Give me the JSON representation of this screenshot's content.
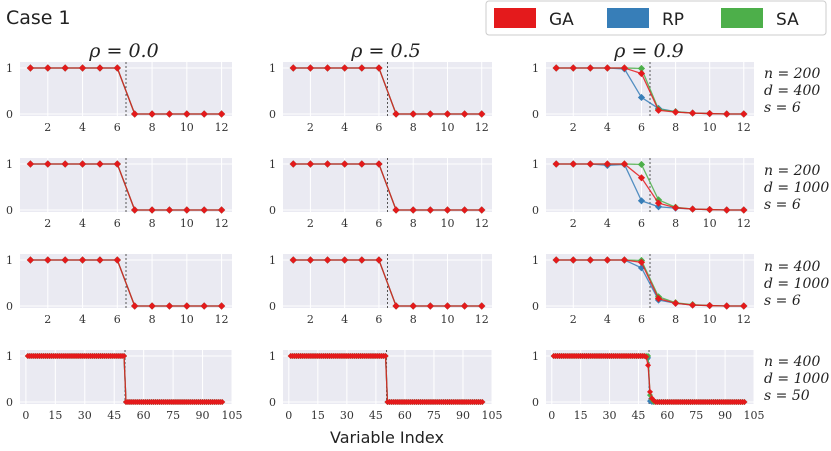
{
  "case_title": "Case 1",
  "legend": [
    {
      "label": "GA",
      "color": "#e41a1c"
    },
    {
      "label": "RP",
      "color": "#377eb8"
    },
    {
      "label": "SA",
      "color": "#4daf4a"
    }
  ],
  "column_titles": [
    "ρ = 0.0",
    "ρ = 0.5",
    "ρ = 0.9"
  ],
  "row_labels": [
    [
      "n = 200",
      "d = 400",
      "s = 6"
    ],
    [
      "n = 200",
      "d = 1000",
      "s = 6"
    ],
    [
      "n = 400",
      "d = 1000",
      "s = 6"
    ],
    [
      "n = 400",
      "d = 1000",
      "s = 50"
    ]
  ],
  "xlabel": "Variable Index",
  "chart_data": {
    "type": "line",
    "grid": true,
    "ylim": [
      0,
      1
    ],
    "yticks": [
      0,
      1
    ],
    "series_names": [
      "GA",
      "RP",
      "SA"
    ],
    "rows": [
      {
        "x": [
          1,
          2,
          3,
          4,
          5,
          6,
          7,
          8,
          9,
          10,
          11,
          12
        ],
        "xticks": [
          2,
          4,
          6,
          8,
          10,
          12
        ],
        "xlim": [
          0.4,
          12.6
        ],
        "threshold": 6.5,
        "panels": [
          {
            "GA": [
              1,
              1,
              1,
              1,
              1,
              1,
              0,
              0,
              0,
              0,
              0,
              0
            ],
            "RP": [
              1,
              1,
              1,
              1,
              1,
              1,
              0,
              0,
              0,
              0,
              0,
              0
            ],
            "SA": [
              1,
              1,
              1,
              1,
              1,
              1,
              0,
              0,
              0,
              0,
              0,
              0
            ]
          },
          {
            "GA": [
              1,
              1,
              1,
              1,
              1,
              1,
              0,
              0,
              0,
              0,
              0,
              0
            ],
            "RP": [
              1,
              1,
              1,
              1,
              1,
              1,
              0,
              0,
              0,
              0,
              0,
              0
            ],
            "SA": [
              1,
              1,
              1,
              1,
              1,
              1,
              0,
              0,
              0,
              0,
              0,
              0
            ]
          },
          {
            "GA": [
              1,
              1,
              1,
              1,
              1,
              0.88,
              0.08,
              0.04,
              0.02,
              0.01,
              0,
              0
            ],
            "RP": [
              1,
              1,
              1,
              1,
              0.98,
              0.36,
              0.12,
              0.05,
              0.02,
              0.01,
              0,
              0
            ],
            "SA": [
              1,
              1,
              1,
              1,
              1,
              0.99,
              0.1,
              0.05,
              0.02,
              0.01,
              0,
              0
            ]
          }
        ]
      },
      {
        "x": [
          1,
          2,
          3,
          4,
          5,
          6,
          7,
          8,
          9,
          10,
          11,
          12
        ],
        "xticks": [
          2,
          4,
          6,
          8,
          10,
          12
        ],
        "xlim": [
          0.4,
          12.6
        ],
        "threshold": 6.5,
        "panels": [
          {
            "GA": [
              1,
              1,
              1,
              1,
              1,
              1,
              0,
              0,
              0,
              0,
              0,
              0
            ],
            "RP": [
              1,
              1,
              1,
              1,
              1,
              1,
              0,
              0,
              0,
              0,
              0,
              0
            ],
            "SA": [
              1,
              1,
              1,
              1,
              1,
              1,
              0,
              0,
              0,
              0,
              0,
              0
            ]
          },
          {
            "GA": [
              1,
              1,
              1,
              1,
              1,
              1,
              0,
              0,
              0,
              0,
              0,
              0
            ],
            "RP": [
              1,
              1,
              1,
              1,
              1,
              1,
              0,
              0,
              0,
              0,
              0,
              0
            ],
            "SA": [
              1,
              1,
              1,
              1,
              1,
              1,
              0,
              0,
              0,
              0,
              0,
              0
            ]
          },
          {
            "GA": [
              1,
              1,
              1,
              1,
              1,
              0.7,
              0.15,
              0.05,
              0.02,
              0.01,
              0,
              0
            ],
            "RP": [
              1,
              1,
              1,
              0.97,
              0.99,
              0.2,
              0.07,
              0.04,
              0.02,
              0.01,
              0,
              0
            ],
            "SA": [
              1,
              1,
              1,
              1,
              1,
              0.99,
              0.22,
              0.06,
              0.02,
              0.01,
              0,
              0
            ]
          }
        ]
      },
      {
        "x": [
          1,
          2,
          3,
          4,
          5,
          6,
          7,
          8,
          9,
          10,
          11,
          12
        ],
        "xticks": [
          2,
          4,
          6,
          8,
          10,
          12
        ],
        "xlim": [
          0.4,
          12.6
        ],
        "threshold": 6.5,
        "panels": [
          {
            "GA": [
              1,
              1,
              1,
              1,
              1,
              1,
              0,
              0,
              0,
              0,
              0,
              0
            ],
            "RP": [
              1,
              1,
              1,
              1,
              1,
              1,
              0,
              0,
              0,
              0,
              0,
              0
            ],
            "SA": [
              1,
              1,
              1,
              1,
              1,
              1,
              0,
              0,
              0,
              0,
              0,
              0
            ]
          },
          {
            "GA": [
              1,
              1,
              1,
              1,
              1,
              1,
              0,
              0,
              0,
              0,
              0,
              0
            ],
            "RP": [
              1,
              1,
              1,
              1,
              1,
              1,
              0,
              0,
              0,
              0,
              0,
              0
            ],
            "SA": [
              1,
              1,
              1,
              1,
              1,
              1,
              0,
              0,
              0,
              0,
              0,
              0
            ]
          },
          {
            "GA": [
              1,
              1,
              1,
              1,
              1,
              0.95,
              0.16,
              0.06,
              0.02,
              0.01,
              0,
              0
            ],
            "RP": [
              1,
              1,
              1,
              1,
              1,
              0.83,
              0.13,
              0.06,
              0.02,
              0.01,
              0,
              0
            ],
            "SA": [
              1,
              1,
              1,
              1,
              1,
              0.99,
              0.2,
              0.07,
              0.03,
              0.01,
              0,
              0
            ]
          }
        ]
      },
      {
        "x_range": [
          1,
          100
        ],
        "xticks": [
          0,
          15,
          30,
          45,
          60,
          75,
          90,
          105
        ],
        "xlim": [
          -3,
          105
        ],
        "threshold": 50.5,
        "panels": [
          {
            "GA": {
              "high_until": 50,
              "levels": {}
            },
            "RP": {
              "high_until": 50,
              "levels": {}
            },
            "SA": {
              "high_until": 50,
              "levels": {}
            }
          },
          {
            "GA": {
              "high_until": 50,
              "levels": {}
            },
            "RP": {
              "high_until": 50,
              "levels": {}
            },
            "SA": {
              "high_until": 50,
              "levels": {}
            }
          },
          {
            "GA": {
              "high_until": 50,
              "levels": {
                "49": 0.98,
                "50": 0.8,
                "51": 0.22,
                "52": 0.08,
                "53": 0.03
              }
            },
            "RP": {
              "high_until": 50,
              "levels": {
                "49": 0.99,
                "50": 0.96,
                "51": 0.02
              }
            },
            "SA": {
              "high_until": 50,
              "levels": {
                "50": 1,
                "51": 0.15,
                "52": 0.05
              }
            }
          }
        ]
      }
    ]
  }
}
